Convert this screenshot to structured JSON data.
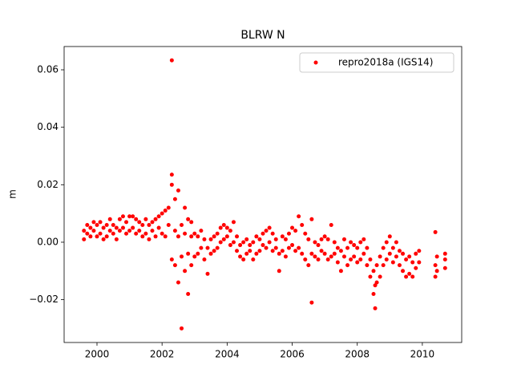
{
  "chart_data": {
    "type": "scatter",
    "title": "BLRW N",
    "y_label": "m",
    "xlim": [
      1998.99,
      2011.21
    ],
    "xticks": [
      2000,
      2002,
      2004,
      2006,
      2008,
      2010
    ],
    "ylim": [
      -0.0349,
      0.0681
    ],
    "yticks": [
      {
        "value": -0.02,
        "label": "−0.02"
      },
      {
        "value": 0,
        "label": "0.00"
      },
      0.02,
      0.04,
      0.06
    ],
    "legend": "upper right",
    "series": [
      {
        "name": "repro2018a (IGS14)",
        "color": "#ff0000",
        "x": [
          1999.6,
          1999.6,
          1999.7,
          1999.7,
          1999.8,
          1999.8,
          1999.9,
          1999.9,
          2000.0,
          2000.0,
          2000.1,
          2000.1,
          2000.2,
          2000.2,
          2000.3,
          2000.3,
          2000.4,
          2000.4,
          2000.5,
          2000.5,
          2000.6,
          2000.6,
          2000.7,
          2000.7,
          2000.8,
          2000.8,
          2000.9,
          2000.9,
          2001.0,
          2001.0,
          2001.1,
          2001.1,
          2001.2,
          2001.2,
          2001.3,
          2001.3,
          2001.4,
          2001.4,
          2001.5,
          2001.5,
          2001.6,
          2001.6,
          2001.7,
          2001.7,
          2001.8,
          2001.8,
          2001.9,
          2001.9,
          2002.0,
          2002.0,
          2002.1,
          2002.1,
          2002.2,
          2002.2,
          2002.3,
          2002.3,
          2002.3,
          2002.3,
          2002.4,
          2002.4,
          2002.4,
          2002.5,
          2002.5,
          2002.5,
          2002.6,
          2002.6,
          2002.6,
          2002.7,
          2002.7,
          2002.7,
          2002.8,
          2002.8,
          2002.8,
          2002.9,
          2002.9,
          2002.9,
          2003.0,
          2003.0,
          2003.1,
          2003.1,
          2003.2,
          2003.2,
          2003.3,
          2003.3,
          2003.4,
          2003.4,
          2003.5,
          2003.5,
          2003.6,
          2003.6,
          2003.7,
          2003.7,
          2003.8,
          2003.8,
          2003.9,
          2003.9,
          2004.0,
          2004.0,
          2004.1,
          2004.1,
          2004.2,
          2004.2,
          2004.3,
          2004.3,
          2004.4,
          2004.4,
          2004.5,
          2004.5,
          2004.6,
          2004.6,
          2004.7,
          2004.7,
          2004.8,
          2004.8,
          2004.9,
          2004.9,
          2005.0,
          2005.0,
          2005.1,
          2005.1,
          2005.2,
          2005.2,
          2005.3,
          2005.3,
          2005.4,
          2005.4,
          2005.5,
          2005.5,
          2005.6,
          2005.6,
          2005.7,
          2005.7,
          2005.8,
          2005.8,
          2005.9,
          2005.9,
          2006.0,
          2006.0,
          2006.1,
          2006.1,
          2006.2,
          2006.2,
          2006.3,
          2006.3,
          2006.4,
          2006.4,
          2006.5,
          2006.5,
          2006.6,
          2006.6,
          2006.6,
          2006.7,
          2006.7,
          2006.8,
          2006.8,
          2006.9,
          2006.9,
          2007.0,
          2007.0,
          2007.1,
          2007.1,
          2007.2,
          2007.2,
          2007.3,
          2007.3,
          2007.4,
          2007.4,
          2007.5,
          2007.5,
          2007.6,
          2007.6,
          2007.7,
          2007.7,
          2007.8,
          2007.8,
          2007.9,
          2007.9,
          2008.0,
          2008.0,
          2008.1,
          2008.1,
          2008.2,
          2008.2,
          2008.3,
          2008.3,
          2008.4,
          2008.4,
          2008.5,
          2008.5,
          2008.55,
          2008.55,
          2008.6,
          2008.6,
          2008.7,
          2008.7,
          2008.8,
          2008.8,
          2008.9,
          2008.9,
          2009.0,
          2009.0,
          2009.1,
          2009.1,
          2009.2,
          2009.2,
          2009.3,
          2009.3,
          2009.4,
          2009.4,
          2009.5,
          2009.5,
          2009.6,
          2009.6,
          2009.7,
          2009.7,
          2009.8,
          2009.8,
          2009.9,
          2009.9,
          2010.4,
          2010.4,
          2010.4,
          2010.45,
          2010.45,
          2010.7,
          2010.7,
          2010.7
        ],
        "values": [
          0.001,
          0.004,
          0.003,
          0.006,
          0.002,
          0.005,
          0.004,
          0.007,
          0.002,
          0.006,
          0.003,
          0.007,
          0.001,
          0.005,
          0.002,
          0.006,
          0.004,
          0.008,
          0.003,
          0.006,
          0.001,
          0.005,
          0.004,
          0.008,
          0.005,
          0.009,
          0.003,
          0.007,
          0.004,
          0.009,
          0.005,
          0.009,
          0.003,
          0.008,
          0.004,
          0.007,
          0.002,
          0.006,
          0.003,
          0.008,
          0.001,
          0.006,
          0.004,
          0.007,
          0.002,
          0.008,
          0.005,
          0.009,
          0.003,
          0.01,
          0.002,
          0.011,
          0.006,
          0.012,
          -0.006,
          0.02,
          0.0235,
          0.0633,
          -0.008,
          0.004,
          0.015,
          -0.014,
          0.002,
          0.018,
          -0.03,
          -0.005,
          0.006,
          -0.01,
          0.003,
          0.012,
          -0.018,
          -0.004,
          0.008,
          -0.008,
          0.002,
          0.007,
          -0.005,
          0.003,
          -0.004,
          0.002,
          -0.002,
          0.004,
          -0.006,
          0.001,
          -0.011,
          -0.002,
          -0.004,
          0.001,
          -0.003,
          0.002,
          -0.002,
          0.003,
          0.0,
          0.005,
          0.001,
          0.006,
          0.002,
          0.005,
          -0.001,
          0.004,
          0.0,
          0.007,
          -0.003,
          0.002,
          -0.005,
          -0.001,
          -0.006,
          0.0,
          -0.004,
          0.001,
          -0.003,
          -0.001,
          -0.006,
          0.0,
          -0.004,
          0.002,
          -0.003,
          0.001,
          -0.001,
          0.003,
          -0.002,
          0.004,
          0.0,
          0.005,
          -0.003,
          0.003,
          -0.002,
          0.001,
          -0.01,
          -0.004,
          -0.003,
          0.002,
          -0.005,
          0.001,
          -0.002,
          0.003,
          -0.001,
          0.005,
          -0.003,
          0.004,
          -0.002,
          0.009,
          -0.004,
          0.006,
          -0.006,
          0.003,
          -0.008,
          0.001,
          -0.021,
          -0.004,
          0.008,
          -0.005,
          0.0,
          -0.006,
          -0.001,
          -0.003,
          0.001,
          -0.004,
          0.002,
          -0.006,
          0.001,
          -0.005,
          0.006,
          -0.004,
          0.0,
          -0.007,
          -0.002,
          -0.01,
          -0.003,
          -0.005,
          0.001,
          -0.008,
          -0.002,
          -0.006,
          0.0,
          -0.005,
          -0.001,
          -0.007,
          -0.002,
          -0.006,
          0.0,
          -0.004,
          0.001,
          -0.008,
          -0.002,
          -0.012,
          -0.006,
          -0.018,
          -0.01,
          -0.023,
          -0.015,
          -0.014,
          -0.008,
          -0.012,
          -0.005,
          -0.008,
          -0.002,
          -0.006,
          0.0,
          -0.004,
          0.002,
          -0.007,
          -0.002,
          -0.005,
          0.0,
          -0.008,
          -0.003,
          -0.01,
          -0.004,
          -0.012,
          -0.006,
          -0.011,
          -0.005,
          -0.012,
          -0.007,
          -0.009,
          -0.004,
          -0.007,
          -0.003,
          -0.012,
          -0.008,
          0.0035,
          -0.01,
          -0.005,
          -0.009,
          -0.006,
          -0.004
        ]
      }
    ]
  }
}
